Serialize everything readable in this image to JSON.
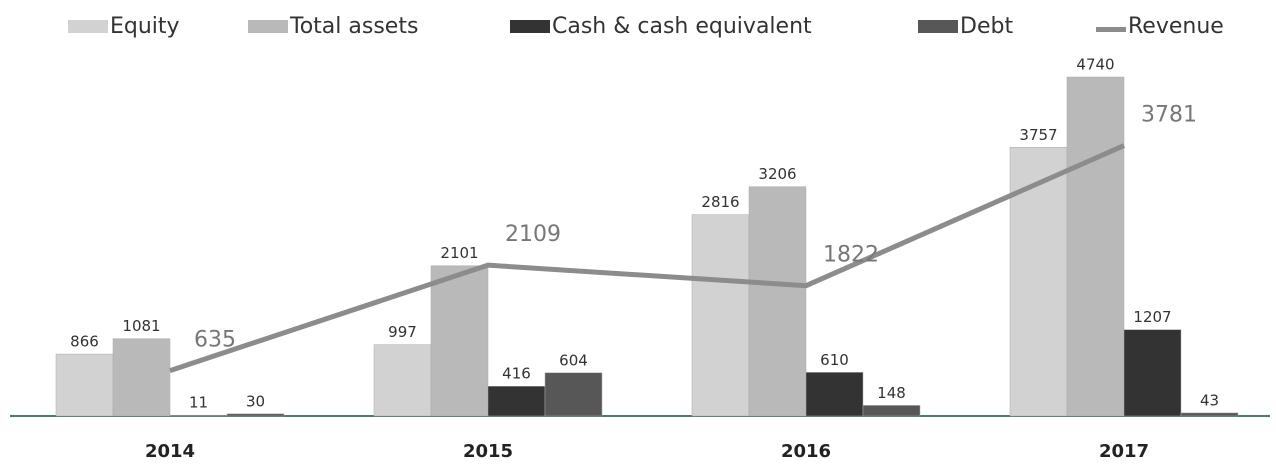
{
  "chart_data": {
    "type": "bar",
    "categories": [
      "2014",
      "2015",
      "2016",
      "2017"
    ],
    "series": [
      {
        "name": "Equity",
        "color": "#d2d2d2",
        "values": [
          866,
          997,
          2816,
          3757
        ]
      },
      {
        "name": "Total assets",
        "color": "#b9b9b9",
        "values": [
          1081,
          2101,
          3206,
          4740
        ]
      },
      {
        "name": "Cash & cash equivalent",
        "color": "#333333",
        "values": [
          11,
          416,
          610,
          1207
        ]
      },
      {
        "name": "Debt",
        "color": "#575757",
        "values": [
          30,
          604,
          148,
          43
        ]
      },
      {
        "name": "Revenue",
        "type": "line",
        "color": "#8c8c8c",
        "values": [
          635,
          2109,
          1822,
          3781
        ]
      }
    ],
    "legend": "top"
  }
}
